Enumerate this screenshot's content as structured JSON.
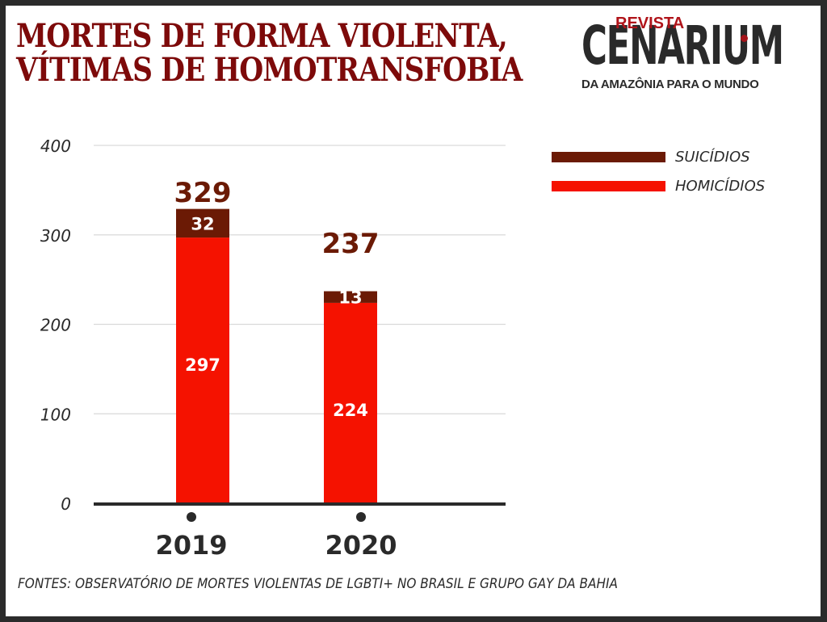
{
  "header": {
    "title_line1": "MORTES DE FORMA VIOLENTA,",
    "title_line2": "VÍTIMAS DE HOMOTRANSFOBIA"
  },
  "logo": {
    "revista": "REVISTA",
    "name": "CENARIUM",
    "tagline": "DA AMAZÔNIA PARA O MUNDO"
  },
  "colors": {
    "title": "#7d0a0a",
    "suicidios": "#6b1a05",
    "homicidios": "#f51200",
    "axis": "#2a2a2a",
    "grid": "#d9d9d9",
    "frame": "#2b2b2b"
  },
  "chart_data": {
    "type": "bar",
    "stacked": true,
    "title": "MORTES DE FORMA VIOLENTA, VÍTIMAS DE HOMOTRANSFOBIA",
    "xlabel": "",
    "ylabel": "",
    "categories": [
      "2019",
      "2020"
    ],
    "series": [
      {
        "name": "HOMICÍDIOS",
        "values": [
          297,
          224
        ],
        "color": "#f51200"
      },
      {
        "name": "SUICÍDIOS",
        "values": [
          32,
          13
        ],
        "color": "#6b1a05"
      }
    ],
    "totals": [
      329,
      237
    ],
    "ylim": [
      0,
      400
    ],
    "yticks": [
      0,
      100,
      200,
      300,
      400
    ],
    "grid": true,
    "legend": {
      "position": "top-right",
      "entries": [
        "SUICÍDIOS",
        "HOMICÍDIOS"
      ]
    }
  },
  "legend": {
    "items": [
      {
        "label": "SUICÍDIOS",
        "color": "#6b1a05"
      },
      {
        "label": "HOMICÍDIOS",
        "color": "#f51200"
      }
    ]
  },
  "footer": {
    "source": "FONTES: OBSERVATÓRIO DE MORTES VIOLENTAS DE LGBTI+ NO BRASIL   E   GRUPO GAY DA BAHIA"
  }
}
